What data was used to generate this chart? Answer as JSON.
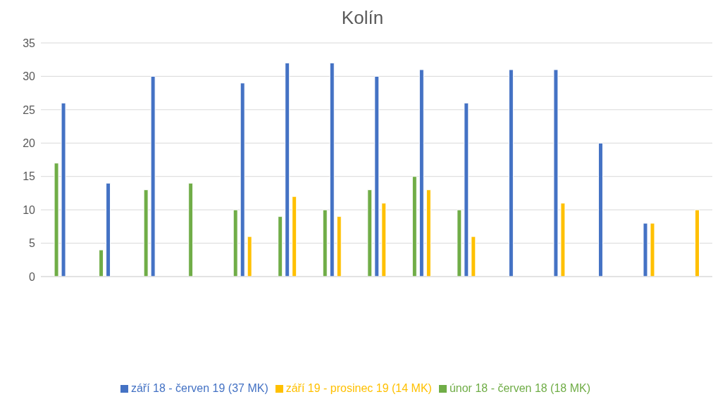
{
  "chart_data": {
    "type": "bar",
    "title": "Kolín",
    "categories": [
      null,
      null,
      null,
      null,
      null,
      null,
      null,
      null,
      null,
      null,
      null,
      null,
      null,
      null,
      null
    ],
    "series": [
      {
        "name": "únor 18 - červen 18 (18 MK)",
        "color": "#70ad47",
        "values": [
          17,
          4,
          13,
          14,
          10,
          9,
          10,
          13,
          15,
          10,
          null,
          null,
          null,
          null,
          null
        ]
      },
      {
        "name": "září 18 - červen 19 (37 MK)",
        "color": "#4472c4",
        "values": [
          26,
          14,
          30,
          null,
          29,
          32,
          32,
          30,
          31,
          26,
          31,
          31,
          20,
          8,
          null
        ]
      },
      {
        "name": "září 19 - prosinec 19 (14 MK)",
        "color": "#ffc000",
        "values": [
          null,
          null,
          null,
          null,
          6,
          12,
          9,
          11,
          13,
          6,
          null,
          11,
          null,
          8,
          10
        ]
      }
    ],
    "ylim": [
      0,
      35
    ],
    "yticks": [
      0,
      5,
      10,
      15,
      20,
      25,
      30,
      35
    ],
    "grid": "y",
    "legend": "bottom"
  }
}
